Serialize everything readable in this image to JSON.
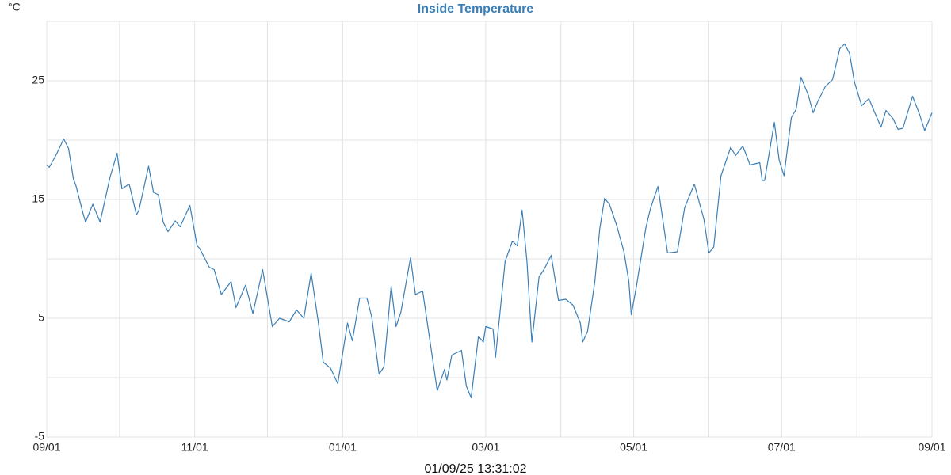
{
  "chart_data": {
    "type": "line",
    "title": "Inside Temperature",
    "y_unit": "°C",
    "timestamp": "01/09/25 13:31:02",
    "x": [
      "09/01",
      "09/02",
      "09/05",
      "09/08",
      "09/10",
      "09/12",
      "09/13",
      "09/16",
      "09/17",
      "09/20",
      "09/23",
      "09/27",
      "09/30",
      "10/02",
      "10/05",
      "10/08",
      "10/09",
      "10/13",
      "10/15",
      "10/17",
      "10/19",
      "10/21",
      "10/24",
      "10/26",
      "10/30",
      "11/02",
      "11/03",
      "11/07",
      "11/09",
      "11/12",
      "11/16",
      "11/18",
      "11/22",
      "11/25",
      "11/29",
      "12/03",
      "12/06",
      "12/10",
      "12/13",
      "12/16",
      "12/19",
      "12/22",
      "12/24",
      "12/27",
      "12/30",
      "01/03",
      "01/05",
      "01/08",
      "01/11",
      "01/13",
      "01/16",
      "01/18",
      "01/21",
      "01/23",
      "01/25",
      "01/29",
      "01/31",
      "02/03",
      "02/06",
      "02/09",
      "02/12",
      "02/13",
      "02/15",
      "02/19",
      "02/21",
      "02/23",
      "02/26",
      "02/28",
      "03/01",
      "03/04",
      "03/05",
      "03/09",
      "03/12",
      "03/14",
      "03/16",
      "03/18",
      "03/20",
      "03/23",
      "03/25",
      "03/28",
      "03/31",
      "04/03",
      "04/06",
      "04/09",
      "04/10",
      "04/12",
      "04/15",
      "04/17",
      "04/19",
      "04/21",
      "04/24",
      "04/27",
      "04/29",
      "04/30",
      "05/02",
      "05/06",
      "05/08",
      "05/11",
      "05/13",
      "05/15",
      "05/19",
      "05/22",
      "05/26",
      "05/28",
      "05/30",
      "06/01",
      "06/03",
      "06/06",
      "06/10",
      "06/12",
      "06/15",
      "06/18",
      "06/20",
      "06/22",
      "06/23",
      "06/24",
      "06/28",
      "06/30",
      "07/02",
      "07/05",
      "07/07",
      "07/09",
      "07/12",
      "07/14",
      "07/16",
      "07/19",
      "07/22",
      "07/25",
      "07/27",
      "07/29",
      "07/31",
      "08/03",
      "08/06",
      "08/08",
      "08/11",
      "08/13",
      "08/16",
      "08/18",
      "08/20",
      "08/24",
      "08/27",
      "08/29",
      "09/01"
    ],
    "series": [
      {
        "name": "Inside Temperature",
        "color": "#3b7fb6",
        "values": [
          17.9,
          17.7,
          18.8,
          20.1,
          19.3,
          16.7,
          16.2,
          13.8,
          13.1,
          14.6,
          13.1,
          16.8,
          18.9,
          15.9,
          16.3,
          13.7,
          14.1,
          17.8,
          15.6,
          15.4,
          13.1,
          12.3,
          13.2,
          12.7,
          14.5,
          11.1,
          10.9,
          9.3,
          9.1,
          7.0,
          8.1,
          5.9,
          7.8,
          5.4,
          9.1,
          4.3,
          5.0,
          4.7,
          5.7,
          5.0,
          8.8,
          4.6,
          1.3,
          0.8,
          -0.5,
          4.6,
          3.1,
          6.7,
          6.7,
          5.1,
          0.3,
          0.9,
          7.7,
          4.3,
          5.5,
          10.1,
          7.0,
          7.3,
          3.1,
          -1.1,
          0.7,
          -0.2,
          1.9,
          2.3,
          -0.7,
          -1.7,
          3.5,
          3.0,
          4.3,
          4.1,
          1.7,
          9.8,
          11.5,
          11.1,
          14.1,
          9.8,
          3.0,
          8.5,
          9.1,
          10.3,
          6.5,
          6.6,
          6.1,
          4.6,
          3.0,
          3.9,
          8.1,
          12.5,
          15.1,
          14.6,
          12.8,
          10.6,
          8.1,
          5.3,
          7.5,
          12.6,
          14.3,
          16.1,
          13.3,
          10.5,
          10.6,
          14.3,
          16.3,
          14.8,
          13.3,
          10.5,
          11.0,
          17.0,
          19.4,
          18.7,
          19.5,
          17.9,
          18.0,
          18.1,
          16.6,
          16.6,
          21.5,
          18.3,
          17.0,
          21.9,
          22.6,
          25.3,
          23.8,
          22.3,
          23.3,
          24.5,
          25.1,
          27.7,
          28.1,
          27.3,
          24.9,
          22.9,
          23.5,
          22.5,
          21.1,
          22.5,
          21.8,
          20.9,
          21.0,
          23.7,
          22.1,
          20.8,
          22.3
        ]
      }
    ],
    "ylim": [
      -5,
      30
    ],
    "yticks": [
      -5,
      5,
      15,
      25
    ],
    "ygrid": [
      -5,
      0,
      5,
      10,
      15,
      20,
      25,
      30
    ],
    "xticks": [
      "09/01",
      "11/01",
      "01/01",
      "03/01",
      "05/01",
      "07/01",
      "09/01"
    ],
    "xgrid": [
      "09/01",
      "10/01",
      "11/01",
      "12/01",
      "01/01",
      "02/01",
      "03/01",
      "04/01",
      "05/01",
      "06/01",
      "07/01",
      "08/01",
      "09/01"
    ],
    "grid": true
  }
}
